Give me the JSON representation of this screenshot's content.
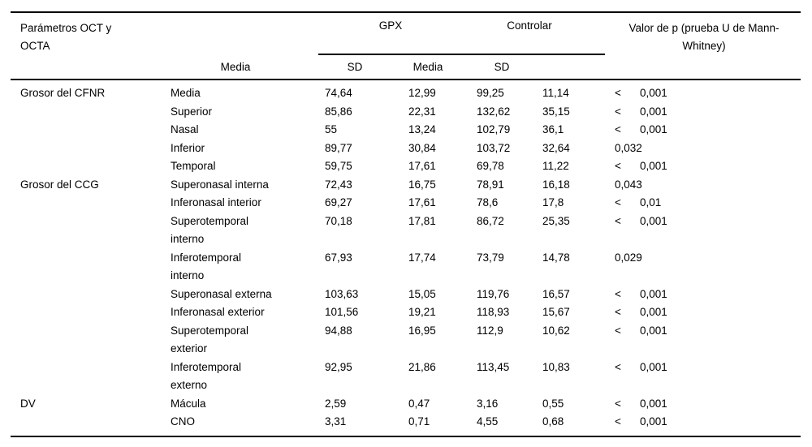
{
  "page": {
    "background_color": "#ffffff",
    "text_color": "#000000",
    "rule_color": "#000000"
  },
  "header": {
    "col_params_lines": [
      "Parámetros OCT y",
      "OCTA"
    ],
    "group_gpx": "GPX",
    "group_control": "Controlar",
    "col_p_lines": [
      "Valor de p (prueba U de Mann-",
      "Whitney)"
    ],
    "sub_labels": [
      "Media",
      "SD",
      "Media",
      "SD"
    ]
  },
  "groups": [
    {
      "name": "Grosor del CFNR",
      "rows": [
        {
          "param": [
            "Media"
          ],
          "gpx_media": "74,64",
          "gpx_sd": "12,99",
          "ctrl_media": "99,25",
          "ctrl_sd": "11,14",
          "p_lt": "<",
          "p": "0,001"
        },
        {
          "param": [
            "Superior"
          ],
          "gpx_media": "85,86",
          "gpx_sd": "22,31",
          "ctrl_media": "132,62",
          "ctrl_sd": "35,15",
          "p_lt": "<",
          "p": "0,001"
        },
        {
          "param": [
            "Nasal"
          ],
          "gpx_media": "55",
          "gpx_sd": "13,24",
          "ctrl_media": "102,79",
          "ctrl_sd": "36,1",
          "p_lt": "<",
          "p": "0,001"
        },
        {
          "param": [
            "Inferior"
          ],
          "gpx_media": "89,77",
          "gpx_sd": "30,84",
          "ctrl_media": "103,72",
          "ctrl_sd": "32,64",
          "p_lt": "",
          "p": "0,032"
        },
        {
          "param": [
            "Temporal"
          ],
          "gpx_media": "59,75",
          "gpx_sd": "17,61",
          "ctrl_media": "69,78",
          "ctrl_sd": "11,22",
          "p_lt": "<",
          "p": "0,001"
        }
      ]
    },
    {
      "name": "Grosor del CCG",
      "rows": [
        {
          "param": [
            "Superonasal interna"
          ],
          "gpx_media": "72,43",
          "gpx_sd": "16,75",
          "ctrl_media": "78,91",
          "ctrl_sd": "16,18",
          "p_lt": "",
          "p": "0,043"
        },
        {
          "param": [
            "Inferonasal interior"
          ],
          "gpx_media": "69,27",
          "gpx_sd": "17,61",
          "ctrl_media": "78,6",
          "ctrl_sd": "17,8",
          "p_lt": "<",
          "p": "0,01"
        },
        {
          "param": [
            "Superotemporal",
            "interno"
          ],
          "gpx_media": "70,18",
          "gpx_sd": "17,81",
          "ctrl_media": "86,72",
          "ctrl_sd": "25,35",
          "p_lt": "<",
          "p": "0,001"
        },
        {
          "param": [
            "Inferotemporal",
            "interno"
          ],
          "gpx_media": "67,93",
          "gpx_sd": "17,74",
          "ctrl_media": "73,79",
          "ctrl_sd": "14,78",
          "p_lt": "",
          "p": "0,029"
        },
        {
          "param": [
            "Superonasal externa"
          ],
          "gpx_media": "103,63",
          "gpx_sd": "15,05",
          "ctrl_media": "119,76",
          "ctrl_sd": "16,57",
          "p_lt": "<",
          "p": "0,001"
        },
        {
          "param": [
            "Inferonasal exterior"
          ],
          "gpx_media": "101,56",
          "gpx_sd": "19,21",
          "ctrl_media": "118,93",
          "ctrl_sd": "15,67",
          "p_lt": "<",
          "p": "0,001"
        },
        {
          "param": [
            "Superotemporal",
            "exterior"
          ],
          "gpx_media": "94,88",
          "gpx_sd": "16,95",
          "ctrl_media": "112,9",
          "ctrl_sd": "10,62",
          "p_lt": "<",
          "p": "0,001"
        },
        {
          "param": [
            "Inferotemporal",
            "externo"
          ],
          "gpx_media": "92,95",
          "gpx_sd": "21,86",
          "ctrl_media": "113,45",
          "ctrl_sd": "10,83",
          "p_lt": "<",
          "p": "0,001"
        }
      ]
    },
    {
      "name": "DV",
      "rows": [
        {
          "param": [
            "Mácula"
          ],
          "gpx_media": "2,59",
          "gpx_sd": "0,47",
          "ctrl_media": "3,16",
          "ctrl_sd": "0,55",
          "p_lt": "<",
          "p": "0,001"
        },
        {
          "param": [
            "CNO"
          ],
          "gpx_media": "3,31",
          "gpx_sd": "0,71",
          "ctrl_media": "4,55",
          "ctrl_sd": "0,68",
          "p_lt": "<",
          "p": "0,001"
        }
      ]
    }
  ]
}
